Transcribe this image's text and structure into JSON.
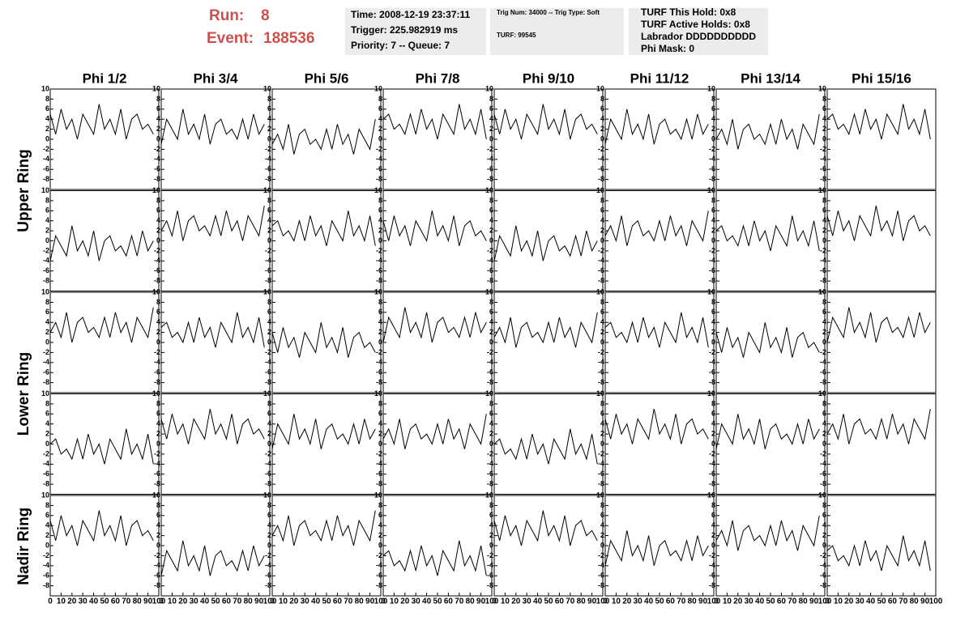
{
  "header": {
    "run_label": "Run:",
    "run": "8",
    "event_label": "Event:",
    "event": "188536",
    "box1": [
      "Time: 2008-12-19 23:37:11",
      "Trigger: 225.982919 ms",
      "Priority: 7 -- Queue: 7"
    ],
    "box2": [
      "Trig Num: 34000 -- Trig Type: Soft",
      "TURF: 99545"
    ],
    "box3": [
      "TURF This Hold: 0x8",
      "TURF Active Holds: 0x8",
      "Labrador DDDDDDDDDD",
      "Phi Mask: 0"
    ]
  },
  "column_titles": [
    "Phi 1/2",
    "Phi 3/4",
    "Phi 5/6",
    "Phi 7/8",
    "Phi 9/10",
    "Phi 11/12",
    "Phi 13/14",
    "Phi 15/16"
  ],
  "row_titles": [
    "Upper Ring",
    "Lower Ring",
    "Nadir Ring"
  ],
  "axes": {
    "x": [
      0,
      5,
      10,
      15,
      20,
      25,
      30,
      35,
      40,
      45,
      50,
      55,
      60,
      65,
      70,
      75,
      80,
      85,
      90,
      95
    ],
    "xlim": [
      0,
      100
    ],
    "xticks": [
      0,
      10,
      20,
      30,
      40,
      50,
      60,
      70,
      80,
      90,
      100
    ],
    "ylim": [
      -10,
      10
    ],
    "yticks": [
      -8,
      -6,
      -4,
      -2,
      0,
      2,
      4,
      6,
      8,
      10
    ]
  },
  "chart_data": [
    {
      "type": "line",
      "values": [
        5,
        1,
        6,
        2,
        4,
        0,
        5,
        3,
        1,
        7,
        2,
        4,
        1,
        6,
        0,
        4,
        5,
        2,
        3,
        1
      ]
    },
    {
      "type": "line",
      "values": [
        -1,
        4,
        2,
        0,
        6,
        1,
        3,
        0,
        5,
        -1,
        3,
        4,
        1,
        2,
        0,
        4,
        0,
        5,
        1,
        3
      ]
    },
    {
      "type": "line",
      "values": [
        -1,
        1,
        -2,
        3,
        -3,
        1,
        2,
        -1,
        0,
        -2,
        2,
        -2,
        3,
        -1,
        1,
        -3,
        2,
        0,
        -2,
        4
      ]
    },
    {
      "type": "line",
      "values": [
        4,
        5,
        2,
        3,
        1,
        5,
        1,
        6,
        2,
        4,
        0,
        5,
        3,
        1,
        7,
        2,
        4,
        1,
        6,
        0
      ]
    },
    {
      "type": "line",
      "values": [
        5,
        1,
        6,
        2,
        4,
        0,
        5,
        3,
        1,
        7,
        2,
        4,
        1,
        6,
        0,
        4,
        5,
        2,
        3,
        1
      ]
    },
    {
      "type": "line",
      "values": [
        -1,
        4,
        2,
        0,
        6,
        1,
        3,
        0,
        5,
        -1,
        3,
        4,
        1,
        2,
        0,
        4,
        0,
        5,
        1,
        3
      ]
    },
    {
      "type": "line",
      "values": [
        0,
        2,
        -1,
        4,
        -2,
        2,
        3,
        0,
        1,
        -1,
        3,
        -1,
        4,
        0,
        2,
        -2,
        3,
        1,
        -1,
        5
      ]
    },
    {
      "type": "line",
      "values": [
        4,
        5,
        2,
        3,
        1,
        5,
        1,
        6,
        2,
        4,
        0,
        5,
        3,
        1,
        7,
        2,
        4,
        1,
        6,
        0
      ]
    },
    {
      "type": "line",
      "values": [
        -4,
        1,
        -1,
        -3,
        3,
        -2,
        0,
        -3,
        2,
        -4,
        0,
        1,
        -2,
        -1,
        -3,
        1,
        -3,
        2,
        -2,
        0
      ]
    },
    {
      "type": "line",
      "values": [
        2,
        4,
        1,
        6,
        0,
        4,
        5,
        2,
        3,
        1,
        5,
        1,
        6,
        2,
        4,
        0,
        5,
        3,
        1,
        7
      ]
    },
    {
      "type": "line",
      "values": [
        3,
        4,
        1,
        2,
        0,
        4,
        0,
        5,
        1,
        3,
        -1,
        4,
        2,
        0,
        6,
        1,
        3,
        0,
        5,
        -1
      ]
    },
    {
      "type": "line",
      "values": [
        4,
        0,
        5,
        1,
        3,
        -1,
        4,
        2,
        0,
        6,
        1,
        3,
        0,
        5,
        -1,
        3,
        4,
        1,
        2,
        0
      ]
    },
    {
      "type": "line",
      "values": [
        -4,
        1,
        -1,
        -3,
        3,
        -2,
        0,
        -3,
        2,
        -4,
        0,
        1,
        -2,
        -1,
        -3,
        1,
        -3,
        2,
        -2,
        0
      ]
    },
    {
      "type": "line",
      "values": [
        1,
        3,
        0,
        5,
        -1,
        3,
        4,
        1,
        2,
        0,
        4,
        0,
        5,
        1,
        3,
        -1,
        4,
        2,
        0,
        6
      ]
    },
    {
      "type": "line",
      "values": [
        2,
        3,
        0,
        1,
        -1,
        3,
        -1,
        4,
        0,
        2,
        -2,
        3,
        1,
        -1,
        5,
        0,
        2,
        -1,
        4,
        -2
      ]
    },
    {
      "type": "line",
      "values": [
        5,
        1,
        6,
        2,
        4,
        0,
        5,
        3,
        1,
        7,
        2,
        4,
        1,
        6,
        0,
        4,
        5,
        2,
        3,
        1
      ]
    },
    {
      "type": "line",
      "values": [
        2,
        4,
        1,
        6,
        0,
        4,
        5,
        2,
        3,
        1,
        5,
        1,
        6,
        2,
        4,
        0,
        5,
        3,
        1,
        7
      ]
    },
    {
      "type": "line",
      "values": [
        3,
        4,
        1,
        2,
        0,
        4,
        0,
        5,
        1,
        3,
        -1,
        4,
        2,
        0,
        6,
        1,
        3,
        0,
        5,
        -1
      ]
    },
    {
      "type": "line",
      "values": [
        2,
        -2,
        3,
        -1,
        1,
        -3,
        2,
        0,
        -2,
        4,
        -1,
        1,
        -2,
        3,
        -3,
        1,
        2,
        -1,
        0,
        -2
      ]
    },
    {
      "type": "line",
      "values": [
        0,
        5,
        3,
        1,
        7,
        2,
        4,
        1,
        6,
        0,
        4,
        5,
        2,
        3,
        1,
        5,
        1,
        6,
        2,
        4
      ]
    },
    {
      "type": "line",
      "values": [
        1,
        3,
        0,
        5,
        -1,
        3,
        4,
        1,
        2,
        0,
        4,
        0,
        5,
        1,
        3,
        -1,
        4,
        2,
        0,
        6
      ]
    },
    {
      "type": "line",
      "values": [
        3,
        4,
        1,
        2,
        0,
        4,
        0,
        5,
        1,
        3,
        -1,
        4,
        2,
        0,
        6,
        1,
        3,
        0,
        5,
        -1
      ]
    },
    {
      "type": "line",
      "values": [
        2,
        -2,
        3,
        -1,
        1,
        -3,
        2,
        0,
        -2,
        4,
        -1,
        1,
        -2,
        3,
        -3,
        1,
        2,
        -1,
        0,
        -2
      ]
    },
    {
      "type": "line",
      "values": [
        0,
        5,
        3,
        1,
        7,
        2,
        4,
        1,
        6,
        0,
        4,
        5,
        2,
        3,
        1,
        5,
        1,
        6,
        2,
        4
      ]
    },
    {
      "type": "line",
      "values": [
        0,
        1,
        -2,
        -1,
        -3,
        1,
        -3,
        2,
        -2,
        0,
        -4,
        1,
        -1,
        -3,
        3,
        -2,
        0,
        -3,
        2,
        -4
      ]
    },
    {
      "type": "line",
      "values": [
        5,
        1,
        6,
        2,
        4,
        0,
        5,
        3,
        1,
        7,
        2,
        4,
        1,
        6,
        0,
        4,
        5,
        2,
        3,
        1
      ]
    },
    {
      "type": "line",
      "values": [
        -1,
        4,
        2,
        0,
        6,
        1,
        3,
        0,
        5,
        -1,
        3,
        4,
        1,
        2,
        0,
        4,
        0,
        5,
        1,
        3
      ]
    },
    {
      "type": "line",
      "values": [
        1,
        3,
        0,
        5,
        -1,
        3,
        4,
        1,
        2,
        0,
        4,
        0,
        5,
        1,
        3,
        -1,
        4,
        2,
        0,
        6
      ]
    },
    {
      "type": "line",
      "values": [
        0,
        1,
        -2,
        -1,
        -3,
        1,
        -3,
        2,
        -2,
        0,
        -4,
        1,
        -1,
        -3,
        3,
        -2,
        0,
        -3,
        2,
        -4
      ]
    },
    {
      "type": "line",
      "values": [
        5,
        1,
        6,
        2,
        4,
        0,
        5,
        3,
        1,
        7,
        2,
        4,
        1,
        6,
        0,
        4,
        5,
        2,
        3,
        1
      ]
    },
    {
      "type": "line",
      "values": [
        -1,
        4,
        2,
        0,
        6,
        1,
        3,
        0,
        5,
        -1,
        3,
        4,
        1,
        2,
        0,
        4,
        0,
        5,
        1,
        3
      ]
    },
    {
      "type": "line",
      "values": [
        2,
        4,
        1,
        6,
        0,
        4,
        5,
        2,
        3,
        1,
        5,
        1,
        6,
        2,
        4,
        0,
        5,
        3,
        1,
        7
      ]
    },
    {
      "type": "line",
      "values": [
        5,
        1,
        6,
        2,
        4,
        0,
        5,
        3,
        1,
        7,
        2,
        4,
        1,
        6,
        0,
        4,
        5,
        2,
        3,
        1
      ]
    },
    {
      "type": "line",
      "values": [
        -6,
        -1,
        -3,
        -5,
        1,
        -4,
        -2,
        -5,
        0,
        -6,
        -2,
        -1,
        -4,
        -3,
        -5,
        -1,
        -5,
        0,
        -4,
        -2
      ]
    },
    {
      "type": "line",
      "values": [
        2,
        4,
        1,
        6,
        0,
        4,
        5,
        2,
        3,
        1,
        5,
        1,
        6,
        2,
        4,
        0,
        5,
        3,
        1,
        7
      ]
    },
    {
      "type": "line",
      "values": [
        -2,
        -1,
        -4,
        -3,
        -5,
        -1,
        -5,
        0,
        -4,
        -2,
        -6,
        -1,
        -3,
        -5,
        1,
        -4,
        -2,
        -5,
        0,
        -6
      ]
    },
    {
      "type": "line",
      "values": [
        5,
        1,
        6,
        2,
        4,
        0,
        5,
        3,
        1,
        7,
        2,
        4,
        1,
        6,
        0,
        4,
        5,
        2,
        3,
        1
      ]
    },
    {
      "type": "line",
      "values": [
        -4,
        1,
        -1,
        -3,
        3,
        -2,
        0,
        -3,
        2,
        -4,
        0,
        1,
        -2,
        -1,
        -3,
        1,
        -3,
        2,
        -2,
        0
      ]
    },
    {
      "type": "line",
      "values": [
        1,
        3,
        0,
        5,
        -1,
        3,
        4,
        1,
        2,
        0,
        4,
        0,
        5,
        1,
        3,
        -1,
        4,
        2,
        0,
        6
      ]
    },
    {
      "type": "line",
      "values": [
        -1,
        0,
        -3,
        -2,
        -4,
        0,
        -4,
        1,
        -3,
        -1,
        -5,
        0,
        -2,
        -4,
        2,
        -3,
        -1,
        -4,
        1,
        -5
      ]
    }
  ]
}
